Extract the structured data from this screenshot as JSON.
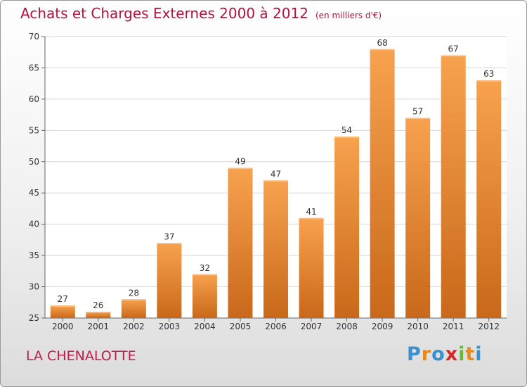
{
  "header": {
    "title": "Achats et Charges Externes 2000 à 2012",
    "subtitle": "(en milliers d'€)"
  },
  "footer": {
    "commune": "LA CHENALOTTE",
    "logo_letters": [
      "P",
      "r",
      "o",
      "x",
      "i",
      "t",
      "i"
    ],
    "logo_colors": [
      "#3a8fd0",
      "#e8891c",
      "#3a8fd0",
      "#d8262b",
      "#6fb43c",
      "#e8891c",
      "#3a8fd0"
    ]
  },
  "colors": {
    "bar_top": "#f7a24e",
    "bar_bottom": "#c9681a",
    "title": "#b5103e",
    "grid": "#d6d6d6"
  },
  "chart_data": {
    "type": "bar",
    "title": "Achats et Charges Externes 2000 à 2012",
    "subtitle": "(en milliers d'€)",
    "xlabel": "",
    "ylabel": "",
    "categories": [
      "2000",
      "2001",
      "2002",
      "2003",
      "2004",
      "2005",
      "2006",
      "2007",
      "2008",
      "2009",
      "2010",
      "2011",
      "2012"
    ],
    "values": [
      27,
      26,
      28,
      37,
      32,
      49,
      47,
      41,
      54,
      68,
      57,
      67,
      63
    ],
    "ylim": [
      25,
      70
    ],
    "yticks": [
      25,
      30,
      35,
      40,
      45,
      50,
      55,
      60,
      65,
      70
    ],
    "grid": true,
    "legend": "none"
  }
}
